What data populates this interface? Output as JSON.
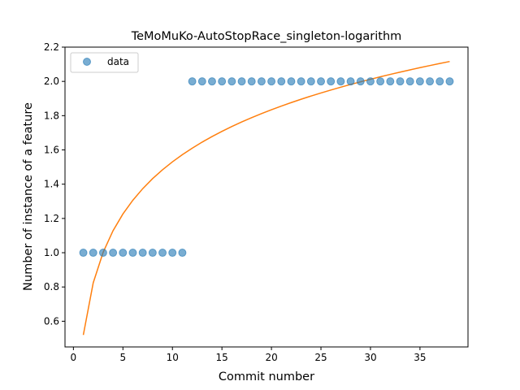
{
  "chart_data": {
    "type": "scatter",
    "title": "TeMoMuKo-AutoStopRace_singleton-logarithm",
    "xlabel": "Commit number",
    "ylabel": "Number of instance of a feature",
    "xlim": [
      -0.85,
      39.85
    ],
    "ylim": [
      0.45,
      2.2
    ],
    "xticks": [
      0,
      5,
      10,
      15,
      20,
      25,
      30,
      35
    ],
    "yticks": [
      0.6,
      0.8,
      1.0,
      1.2,
      1.4,
      1.6,
      1.8,
      2.0,
      2.2
    ],
    "ytick_labels": [
      "0.6",
      "0.8",
      "1.0",
      "1.2",
      "1.4",
      "1.6",
      "1.8",
      "2.0",
      "2.2"
    ],
    "legend": {
      "placement": "top-left",
      "entries": [
        "data"
      ]
    },
    "series": [
      {
        "name": "data",
        "kind": "scatter",
        "color": "#1f77b4",
        "x": [
          1,
          2,
          3,
          4,
          5,
          6,
          7,
          8,
          9,
          10,
          11,
          12,
          13,
          14,
          15,
          16,
          17,
          18,
          19,
          20,
          21,
          22,
          23,
          24,
          25,
          26,
          27,
          28,
          29,
          30,
          31,
          32,
          33,
          34,
          35,
          36,
          37,
          38
        ],
        "y": [
          1,
          1,
          1,
          1,
          1,
          1,
          1,
          1,
          1,
          1,
          1,
          2,
          2,
          2,
          2,
          2,
          2,
          2,
          2,
          2,
          2,
          2,
          2,
          2,
          2,
          2,
          2,
          2,
          2,
          2,
          2,
          2,
          2,
          2,
          2,
          2,
          2,
          2
        ]
      },
      {
        "kind": "line",
        "color": "#ff7f0e",
        "fit": {
          "a": 0.52,
          "b": 0.4388
        },
        "x_range": [
          1,
          38
        ]
      }
    ]
  }
}
